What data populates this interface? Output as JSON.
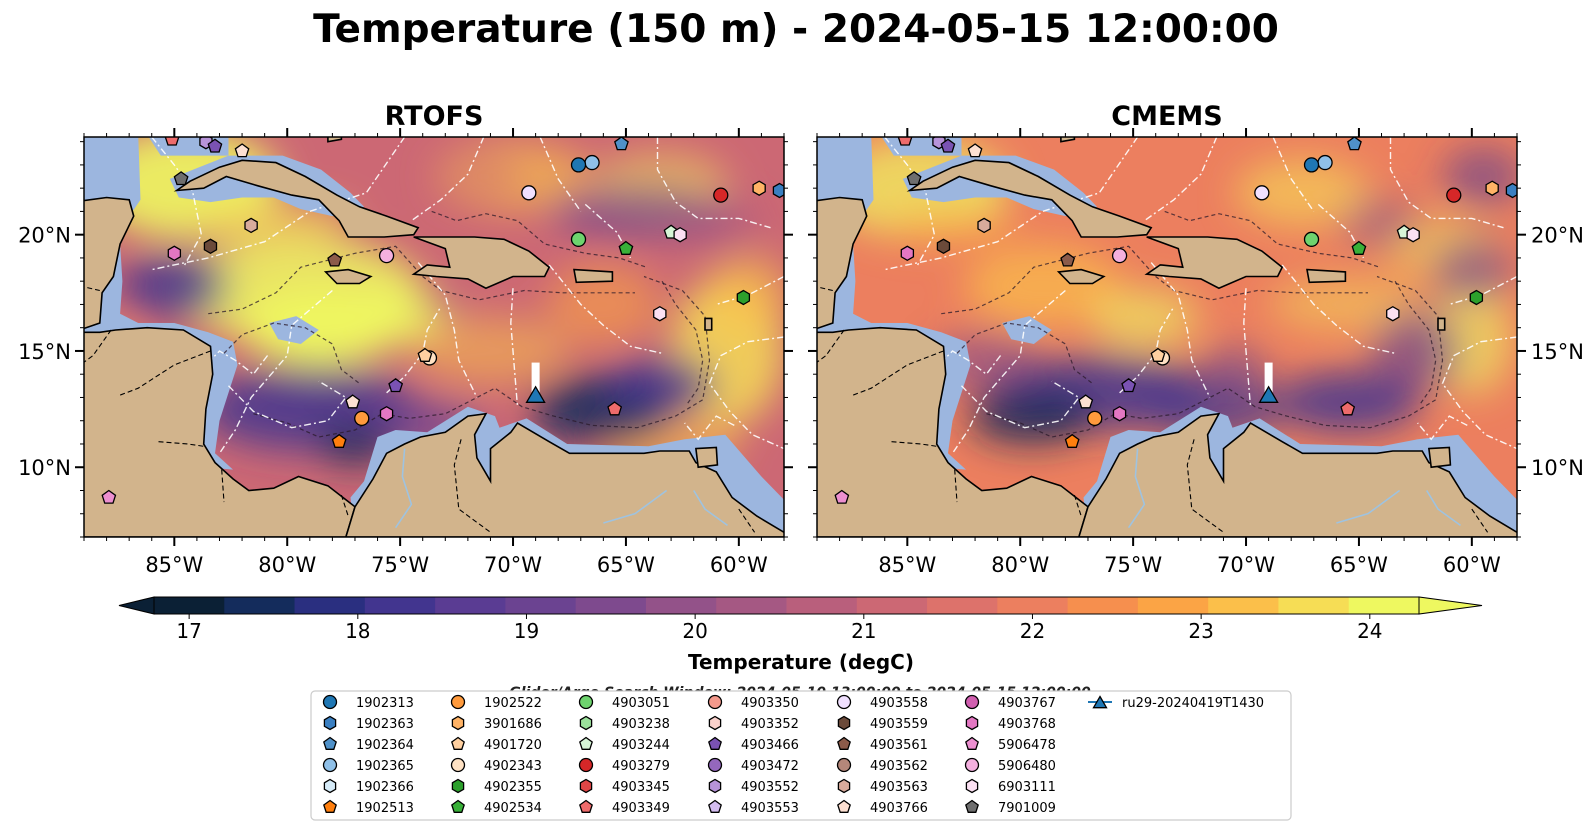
{
  "title": "Temperature (150 m) - 2024-05-15 12:00:00",
  "panels": [
    {
      "title": "RTOFS"
    },
    {
      "title": "CMEMS"
    }
  ],
  "map_extent": {
    "lon": [
      -89,
      -58
    ],
    "lat": [
      7,
      24.2
    ]
  },
  "lon_ticks": [
    {
      "value": -85,
      "label": "85°W"
    },
    {
      "value": -80,
      "label": "80°W"
    },
    {
      "value": -75,
      "label": "75°W"
    },
    {
      "value": -70,
      "label": "70°W"
    },
    {
      "value": -65,
      "label": "65°W"
    },
    {
      "value": -60,
      "label": "60°W"
    }
  ],
  "lat_ticks": [
    {
      "value": 20,
      "label": "20°N"
    },
    {
      "value": 15,
      "label": "15°N"
    },
    {
      "value": 10,
      "label": "10°N"
    }
  ],
  "colors": {
    "land": "#d2b48c",
    "shelf": "#9cb6df",
    "deep": "#0d2b3e",
    "grid": "#ffffff",
    "glider_track": "#ffffff"
  },
  "colorbar": {
    "label": "Temperature (degC)",
    "min": 17,
    "max": 24.5,
    "step": 0.5,
    "ticks": [
      17,
      18,
      19,
      20,
      21,
      22,
      23,
      24
    ],
    "colors": [
      "#0b2035",
      "#142c5c",
      "#2a2f80",
      "#42358f",
      "#5a3c93",
      "#6b4391",
      "#7e4a8e",
      "#935289",
      "#a55883",
      "#b95f7c",
      "#cc6874",
      "#dd726b",
      "#ec7f5f",
      "#f68f4e",
      "#fba445",
      "#fbbf4a",
      "#f6dd55",
      "#eef860"
    ],
    "extend": "both"
  },
  "search_window": "Glider/Argo Search Window: 2024-05-10 13:00:00 to 2024-05-15 12:00:00",
  "legend": [
    {
      "label": "1902313",
      "marker": "circle",
      "color": "#1f77b4"
    },
    {
      "label": "1902363",
      "marker": "hexagon",
      "color": "#3a7fc1"
    },
    {
      "label": "1902364",
      "marker": "pentagon",
      "color": "#4f91c9"
    },
    {
      "label": "1902365",
      "marker": "circle",
      "color": "#8fc0e8"
    },
    {
      "label": "1902366",
      "marker": "hexagon",
      "color": "#d6ebf8"
    },
    {
      "label": "1902513",
      "marker": "pentagon",
      "color": "#ff7f0e"
    },
    {
      "label": "1902522",
      "marker": "circle",
      "color": "#ff9a3c"
    },
    {
      "label": "3901686",
      "marker": "hexagon",
      "color": "#ffb366"
    },
    {
      "label": "4901720",
      "marker": "pentagon",
      "color": "#ffd0a0"
    },
    {
      "label": "4902343",
      "marker": "circle",
      "color": "#ffe2c4"
    },
    {
      "label": "4902355",
      "marker": "hexagon",
      "color": "#2ca02c"
    },
    {
      "label": "4902534",
      "marker": "pentagon",
      "color": "#38b038"
    },
    {
      "label": "4903051",
      "marker": "circle",
      "color": "#6ed36e"
    },
    {
      "label": "4903238",
      "marker": "hexagon",
      "color": "#9be09b"
    },
    {
      "label": "4903244",
      "marker": "pentagon",
      "color": "#d6f5d6"
    },
    {
      "label": "4903279",
      "marker": "circle",
      "color": "#d62728"
    },
    {
      "label": "4903345",
      "marker": "hexagon",
      "color": "#e04646"
    },
    {
      "label": "4903349",
      "marker": "pentagon",
      "color": "#ee6b6b"
    },
    {
      "label": "4903350",
      "marker": "circle",
      "color": "#f4998c"
    },
    {
      "label": "4903352",
      "marker": "hexagon",
      "color": "#fbd2cc"
    },
    {
      "label": "4903466",
      "marker": "pentagon",
      "color": "#7a52b3"
    },
    {
      "label": "4903472",
      "marker": "circle",
      "color": "#9467bd"
    },
    {
      "label": "4903552",
      "marker": "hexagon",
      "color": "#b794d9"
    },
    {
      "label": "4903553",
      "marker": "pentagon",
      "color": "#d4bdf0"
    },
    {
      "label": "4903558",
      "marker": "circle",
      "color": "#f0e0ff"
    },
    {
      "label": "4903559",
      "marker": "hexagon",
      "color": "#6b4a3a"
    },
    {
      "label": "4903561",
      "marker": "pentagon",
      "color": "#8c5b4a"
    },
    {
      "label": "4903562",
      "marker": "circle",
      "color": "#b5877a"
    },
    {
      "label": "4903563",
      "marker": "hexagon",
      "color": "#d8ab9c"
    },
    {
      "label": "4903766",
      "marker": "pentagon",
      "color": "#fde0d2"
    },
    {
      "label": "4903767",
      "marker": "circle",
      "color": "#d15fb0"
    },
    {
      "label": "4903768",
      "marker": "hexagon",
      "color": "#e377c2"
    },
    {
      "label": "5906478",
      "marker": "pentagon",
      "color": "#ec8fd0"
    },
    {
      "label": "5906480",
      "marker": "circle",
      "color": "#f4b0df"
    },
    {
      "label": "6903111",
      "marker": "hexagon",
      "color": "#fbe0f2"
    },
    {
      "label": "7901009",
      "marker": "pentagon",
      "color": "#6e6e6e"
    },
    {
      "label": "ru29-20240419T1430",
      "marker": "triangle",
      "color": "#1f77b4",
      "line": true
    }
  ],
  "floats": [
    {
      "id": "1902363",
      "lon": -58.2,
      "lat": 21.9
    },
    {
      "id": "1902364",
      "lon": -65.2,
      "lat": 23.9
    },
    {
      "id": "1902365",
      "lon": -66.5,
      "lat": 23.1
    },
    {
      "id": "1902313",
      "lon": -67.1,
      "lat": 23.0
    },
    {
      "id": "4903558",
      "lon": -69.3,
      "lat": 21.8
    },
    {
      "id": "4903279",
      "lon": -60.8,
      "lat": 21.7
    },
    {
      "id": "3901686",
      "lon": -59.1,
      "lat": 22.0
    },
    {
      "id": "4903051",
      "lon": -67.1,
      "lat": 19.8
    },
    {
      "id": "4902534",
      "lon": -65.0,
      "lat": 19.4
    },
    {
      "id": "4903244",
      "lon": -63.0,
      "lat": 20.1
    },
    {
      "id": "6903111",
      "lon": -62.6,
      "lat": 20.0
    },
    {
      "id": "4902355",
      "lon": -59.8,
      "lat": 17.3
    },
    {
      "id": "6903111",
      "lon": -63.5,
      "lat": 16.6
    },
    {
      "id": "4902343",
      "lon": -73.7,
      "lat": 14.7
    },
    {
      "id": "4901720",
      "lon": -73.9,
      "lat": 14.8
    },
    {
      "id": "4903466",
      "lon": -75.2,
      "lat": 13.5
    },
    {
      "id": "4903766",
      "lon": -77.1,
      "lat": 12.8
    },
    {
      "id": "1902522",
      "lon": -76.7,
      "lat": 12.1
    },
    {
      "id": "4903768",
      "lon": -75.6,
      "lat": 12.3
    },
    {
      "id": "1902513",
      "lon": -77.7,
      "lat": 11.1
    },
    {
      "id": "4903349",
      "lon": -65.5,
      "lat": 12.5
    },
    {
      "id": "5906480",
      "lon": -75.6,
      "lat": 19.1
    },
    {
      "id": "4903561",
      "lon": -77.9,
      "lat": 18.9
    },
    {
      "id": "4903559",
      "lon": -83.4,
      "lat": 19.5
    },
    {
      "id": "4903768",
      "lon": -85.0,
      "lat": 19.2
    },
    {
      "id": "4903563",
      "lon": -81.6,
      "lat": 20.4
    },
    {
      "id": "7901009",
      "lon": -84.7,
      "lat": 22.4
    },
    {
      "id": "4903552",
      "lon": -83.6,
      "lat": 24.0
    },
    {
      "id": "4903466",
      "lon": -83.2,
      "lat": 23.8
    },
    {
      "id": "4903349",
      "lon": -85.1,
      "lat": 24.1
    },
    {
      "id": "5906478",
      "lon": -87.9,
      "lat": 8.7
    },
    {
      "id": "4903766",
      "lon": -82.0,
      "lat": 23.6
    }
  ],
  "glider": {
    "id": "ru29-20240419T1430",
    "lon": -69.0,
    "lat": 13.1,
    "track_top_lat": 14.5
  }
}
